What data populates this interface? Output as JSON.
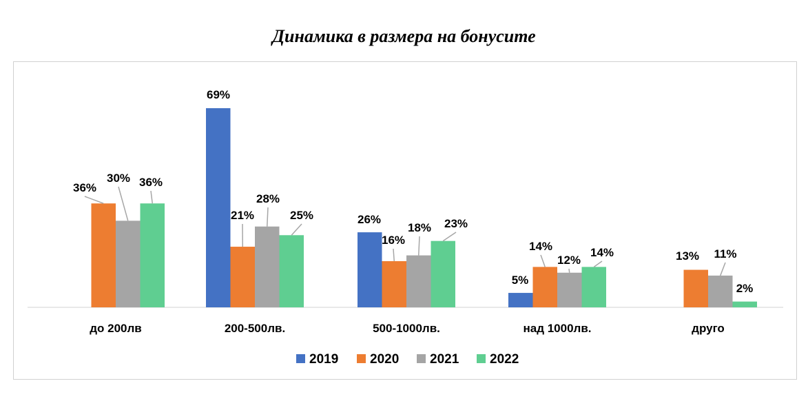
{
  "chart_data": {
    "type": "bar",
    "title": "Динамика в размера на бонусите",
    "categories": [
      "до 200лв",
      "200-500лв.",
      "500-1000лв.",
      "над 1000лв.",
      "друго"
    ],
    "series": [
      {
        "name": "2019",
        "color": "#4472C4",
        "values": [
          null,
          69,
          26,
          5,
          null
        ],
        "labels": [
          "",
          "69%",
          "26%",
          "5%",
          ""
        ]
      },
      {
        "name": "2020",
        "color": "#ED7D31",
        "values": [
          36,
          21,
          16,
          14,
          13
        ],
        "labels": [
          "36%",
          "21%",
          "16%",
          "14%",
          "13%"
        ]
      },
      {
        "name": "2021",
        "color": "#A5A5A5",
        "values": [
          30,
          28,
          18,
          12,
          11
        ],
        "labels": [
          "30%",
          "28%",
          "18%",
          "12%",
          "11%"
        ]
      },
      {
        "name": "2022",
        "color": "#5FCE91",
        "values": [
          36,
          25,
          23,
          14,
          2
        ],
        "labels": [
          "36%",
          "25%",
          "23%",
          "14%",
          "2%"
        ]
      }
    ],
    "ylim": [
      0,
      75
    ],
    "legend": "bottom",
    "grid": false
  }
}
